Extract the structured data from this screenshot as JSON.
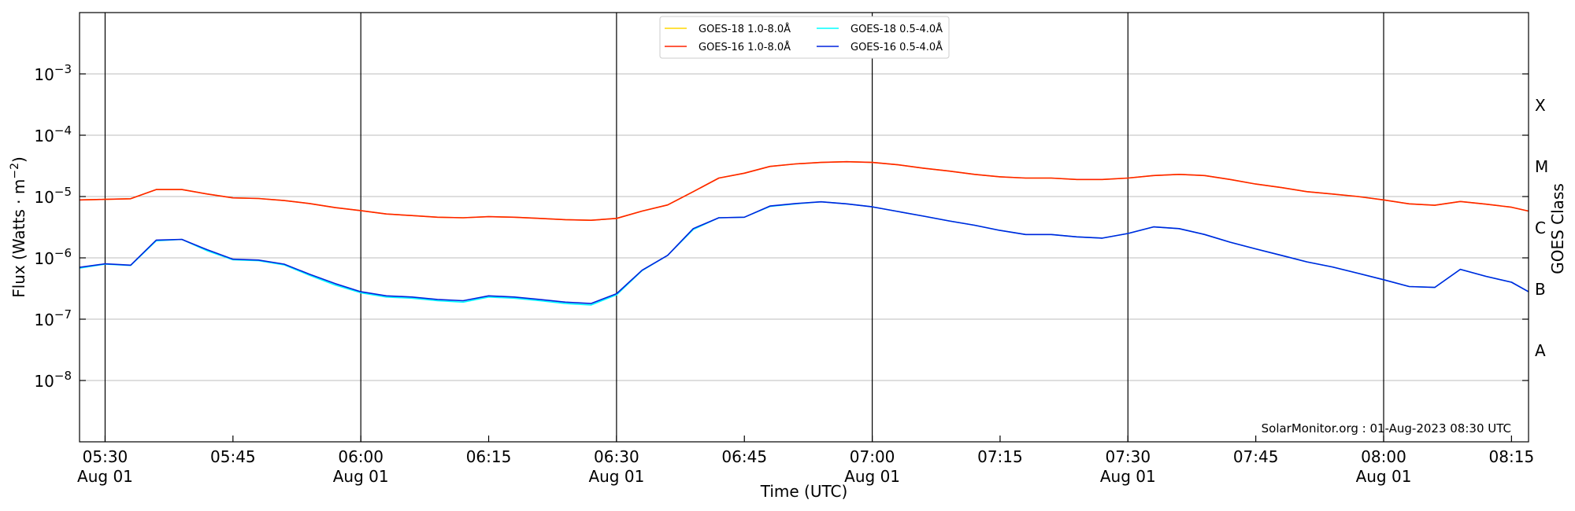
{
  "chart_data": {
    "type": "line",
    "xlabel": "Time (UTC)",
    "ylabel": "Flux (Watts · m",
    "ylabel_unit_superscript": "−2",
    "ylabel_close": ")",
    "right_axis_label": "GOES Class",
    "y_scale": "log",
    "ylim": [
      1e-09,
      0.01
    ],
    "xlim": [
      "05:27",
      "08:17"
    ],
    "grid": "horizontal at decades; vertical at each half hour",
    "legend_placement": "top-center",
    "x_ticks": [
      {
        "time": "05:30",
        "date": "Aug 01"
      },
      {
        "time": "05:45",
        "date": ""
      },
      {
        "time": "06:00",
        "date": "Aug 01"
      },
      {
        "time": "06:15",
        "date": ""
      },
      {
        "time": "06:30",
        "date": "Aug 01"
      },
      {
        "time": "06:45",
        "date": ""
      },
      {
        "time": "07:00",
        "date": "Aug 01"
      },
      {
        "time": "07:15",
        "date": ""
      },
      {
        "time": "07:30",
        "date": "Aug 01"
      },
      {
        "time": "07:45",
        "date": ""
      },
      {
        "time": "08:00",
        "date": "Aug 01"
      },
      {
        "time": "08:15",
        "date": ""
      }
    ],
    "y_ticks": [
      {
        "exp": -3,
        "label_base": "10",
        "label_exp": "−3"
      },
      {
        "exp": -4,
        "label_base": "10",
        "label_exp": "−4"
      },
      {
        "exp": -5,
        "label_base": "10",
        "label_exp": "−5"
      },
      {
        "exp": -6,
        "label_base": "10",
        "label_exp": "−6"
      },
      {
        "exp": -7,
        "label_base": "10",
        "label_exp": "−7"
      },
      {
        "exp": -8,
        "label_base": "10",
        "label_exp": "−8"
      }
    ],
    "goes_classes": [
      {
        "label": "X",
        "exp": -3.5
      },
      {
        "label": "M",
        "exp": -4.5
      },
      {
        "label": "C",
        "exp": -5.5
      },
      {
        "label": "B",
        "exp": -6.5
      },
      {
        "label": "A",
        "exp": -7.5
      }
    ],
    "credit": "SolarMonitor.org : 01-Aug-2023 08:30 UTC",
    "x": [
      "05:27",
      "05:30",
      "05:33",
      "05:36",
      "05:39",
      "05:42",
      "05:45",
      "05:48",
      "05:51",
      "05:54",
      "05:57",
      "06:00",
      "06:03",
      "06:06",
      "06:09",
      "06:12",
      "06:15",
      "06:18",
      "06:21",
      "06:24",
      "06:27",
      "06:30",
      "06:33",
      "06:36",
      "06:39",
      "06:42",
      "06:45",
      "06:48",
      "06:51",
      "06:54",
      "06:57",
      "07:00",
      "07:03",
      "07:06",
      "07:09",
      "07:12",
      "07:15",
      "07:18",
      "07:21",
      "07:24",
      "07:27",
      "07:30",
      "07:33",
      "07:36",
      "07:39",
      "07:42",
      "07:45",
      "07:48",
      "07:51",
      "07:54",
      "07:57",
      "08:00",
      "08:03",
      "08:06",
      "08:09",
      "08:12",
      "08:15",
      "08:17"
    ],
    "series": [
      {
        "name": "GOES-18 1.0-8.0Å",
        "color": "#FFD700",
        "values": [
          8.8e-06,
          9e-06,
          9.2e-06,
          1.3e-05,
          1.3e-05,
          1.1e-05,
          9.5e-06,
          9.3e-06,
          8.6e-06,
          7.7e-06,
          6.6e-06,
          5.9e-06,
          5.2e-06,
          4.9e-06,
          4.6e-06,
          4.5e-06,
          4.7e-06,
          4.6e-06,
          4.4e-06,
          4.2e-06,
          4.1e-06,
          4.4e-06,
          5.8e-06,
          7.3e-06,
          1.2e-05,
          2e-05,
          2.4e-05,
          3.1e-05,
          3.4e-05,
          3.6e-05,
          3.7e-05,
          3.6e-05,
          3.3e-05,
          2.9e-05,
          2.6e-05,
          2.3e-05,
          2.1e-05,
          2e-05,
          2e-05,
          1.9e-05,
          1.9e-05,
          2e-05,
          2.2e-05,
          2.3e-05,
          2.2e-05,
          1.9e-05,
          1.6e-05,
          1.4e-05,
          1.2e-05,
          1.1e-05,
          1e-05,
          8.8e-06,
          7.6e-06,
          7.2e-06,
          8.3e-06,
          7.5e-06,
          6.7e-06,
          5.8e-06
        ]
      },
      {
        "name": "GOES-18 0.5-4.0Å",
        "color": "#00FFFF",
        "values": [
          6.8e-07,
          7.9e-07,
          7.5e-07,
          1.9e-06,
          2e-06,
          1.3e-06,
          9.3e-07,
          9e-07,
          7.7e-07,
          5.2e-07,
          3.6e-07,
          2.7e-07,
          2.3e-07,
          2.2e-07,
          2e-07,
          1.9e-07,
          2.3e-07,
          2.2e-07,
          2e-07,
          1.8e-07,
          1.7e-07,
          2.5e-07,
          6.2e-07,
          1.1e-06,
          2.9e-06,
          4.5e-06,
          4.6e-06,
          6.9e-06,
          7.6e-06,
          8.2e-06,
          7.6e-06,
          6.8e-06,
          5.7e-06,
          4.8e-06,
          4e-06,
          3.4e-06,
          2.8e-06,
          2.4e-06,
          2.4e-06,
          2.2e-06,
          2.1e-06,
          2.5e-06,
          3.2e-06,
          3e-06,
          2.4e-06,
          1.8e-06,
          1.4e-06,
          1.1e-06,
          8.6e-07,
          7.1e-07,
          5.6e-07,
          4.4e-07,
          3.4e-07,
          3.3e-07,
          6.5e-07,
          5e-07,
          4e-07,
          2.8e-07
        ]
      },
      {
        "name": "GOES-16 1.0-8.0Å",
        "color": "#FF2200",
        "values": [
          8.8e-06,
          9e-06,
          9.2e-06,
          1.3e-05,
          1.3e-05,
          1.1e-05,
          9.5e-06,
          9.3e-06,
          8.6e-06,
          7.7e-06,
          6.6e-06,
          5.9e-06,
          5.2e-06,
          4.9e-06,
          4.6e-06,
          4.5e-06,
          4.7e-06,
          4.6e-06,
          4.4e-06,
          4.2e-06,
          4.1e-06,
          4.4e-06,
          5.8e-06,
          7.3e-06,
          1.2e-05,
          2e-05,
          2.4e-05,
          3.1e-05,
          3.4e-05,
          3.6e-05,
          3.7e-05,
          3.6e-05,
          3.3e-05,
          2.9e-05,
          2.6e-05,
          2.3e-05,
          2.1e-05,
          2e-05,
          2e-05,
          1.9e-05,
          1.9e-05,
          2e-05,
          2.2e-05,
          2.3e-05,
          2.2e-05,
          1.9e-05,
          1.6e-05,
          1.4e-05,
          1.2e-05,
          1.1e-05,
          1e-05,
          8.8e-06,
          7.6e-06,
          7.2e-06,
          8.3e-06,
          7.5e-06,
          6.7e-06,
          5.8e-06
        ]
      },
      {
        "name": "GOES-16 0.5-4.0Å",
        "color": "#0022DD",
        "values": [
          7e-07,
          8e-07,
          7.6e-07,
          1.95e-06,
          2e-06,
          1.35e-06,
          9.5e-07,
          9.2e-07,
          7.9e-07,
          5.4e-07,
          3.8e-07,
          2.8e-07,
          2.4e-07,
          2.3e-07,
          2.1e-07,
          2e-07,
          2.4e-07,
          2.3e-07,
          2.1e-07,
          1.9e-07,
          1.8e-07,
          2.6e-07,
          6.3e-07,
          1.1e-06,
          3e-06,
          4.5e-06,
          4.6e-06,
          7e-06,
          7.7e-06,
          8.2e-06,
          7.6e-06,
          6.8e-06,
          5.7e-06,
          4.8e-06,
          4e-06,
          3.4e-06,
          2.8e-06,
          2.4e-06,
          2.4e-06,
          2.2e-06,
          2.1e-06,
          2.5e-06,
          3.2e-06,
          3e-06,
          2.4e-06,
          1.8e-06,
          1.4e-06,
          1.1e-06,
          8.6e-07,
          7.1e-07,
          5.6e-07,
          4.4e-07,
          3.4e-07,
          3.3e-07,
          6.5e-07,
          5e-07,
          4e-07,
          2.8e-07
        ]
      }
    ],
    "legend": [
      {
        "series": 0,
        "column": 0,
        "row": 0
      },
      {
        "series": 2,
        "column": 0,
        "row": 1
      },
      {
        "series": 1,
        "column": 1,
        "row": 0
      },
      {
        "series": 3,
        "column": 1,
        "row": 1
      }
    ]
  }
}
